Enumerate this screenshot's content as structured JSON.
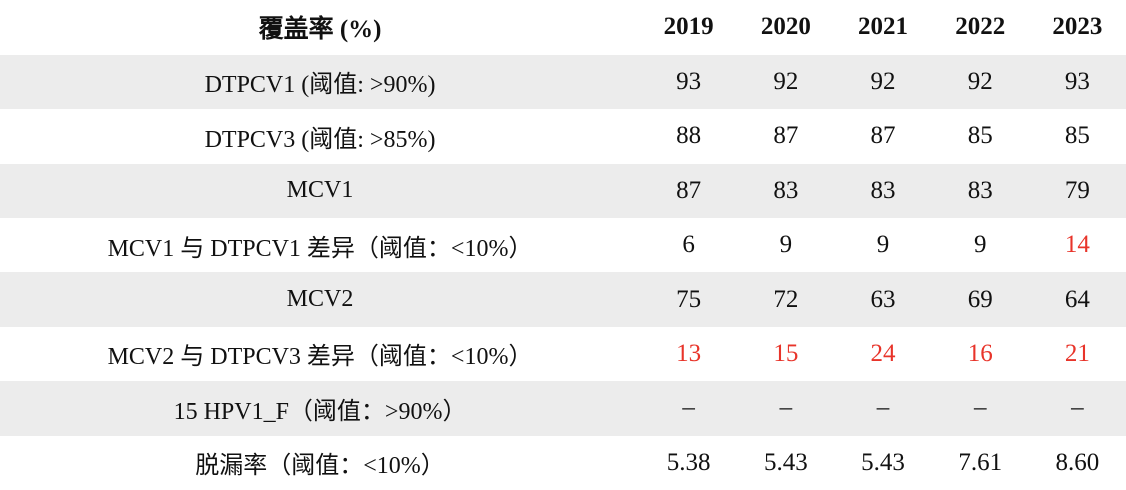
{
  "header": {
    "label": "覆盖率 (%)",
    "years": [
      "2019",
      "2020",
      "2021",
      "2022",
      "2023"
    ]
  },
  "rows": [
    {
      "label": "DTPCV1 (阈值: >90%)",
      "values": [
        "93",
        "92",
        "92",
        "92",
        "93"
      ],
      "alerts": [
        false,
        false,
        false,
        false,
        false
      ]
    },
    {
      "label": "DTPCV3 (阈值: >85%)",
      "values": [
        "88",
        "87",
        "87",
        "85",
        "85"
      ],
      "alerts": [
        false,
        false,
        false,
        false,
        false
      ]
    },
    {
      "label": "MCV1",
      "values": [
        "87",
        "83",
        "83",
        "83",
        "79"
      ],
      "alerts": [
        false,
        false,
        false,
        false,
        false
      ]
    },
    {
      "label": "MCV1 与 DTPCV1 差异（阈值：<10%）",
      "values": [
        "6",
        "9",
        "9",
        "9",
        "14"
      ],
      "alerts": [
        false,
        false,
        false,
        false,
        true
      ]
    },
    {
      "label": "MCV2",
      "values": [
        "75",
        "72",
        "63",
        "69",
        "64"
      ],
      "alerts": [
        false,
        false,
        false,
        false,
        false
      ]
    },
    {
      "label": "MCV2 与 DTPCV3 差异（阈值：<10%）",
      "values": [
        "13",
        "15",
        "24",
        "16",
        "21"
      ],
      "alerts": [
        true,
        true,
        true,
        true,
        true
      ]
    },
    {
      "label": "15 HPV1_F（阈值：>90%）",
      "values": [
        "–",
        "–",
        "–",
        "–",
        "–"
      ],
      "alerts": [
        false,
        false,
        false,
        false,
        false
      ]
    },
    {
      "label": "脱漏率（阈值：<10%）",
      "values": [
        "5.38",
        "5.43",
        "5.43",
        "7.61",
        "8.60"
      ],
      "alerts": [
        false,
        false,
        false,
        false,
        false
      ]
    }
  ],
  "colors": {
    "alert": "#e8342a",
    "stripe": "#ececec"
  }
}
